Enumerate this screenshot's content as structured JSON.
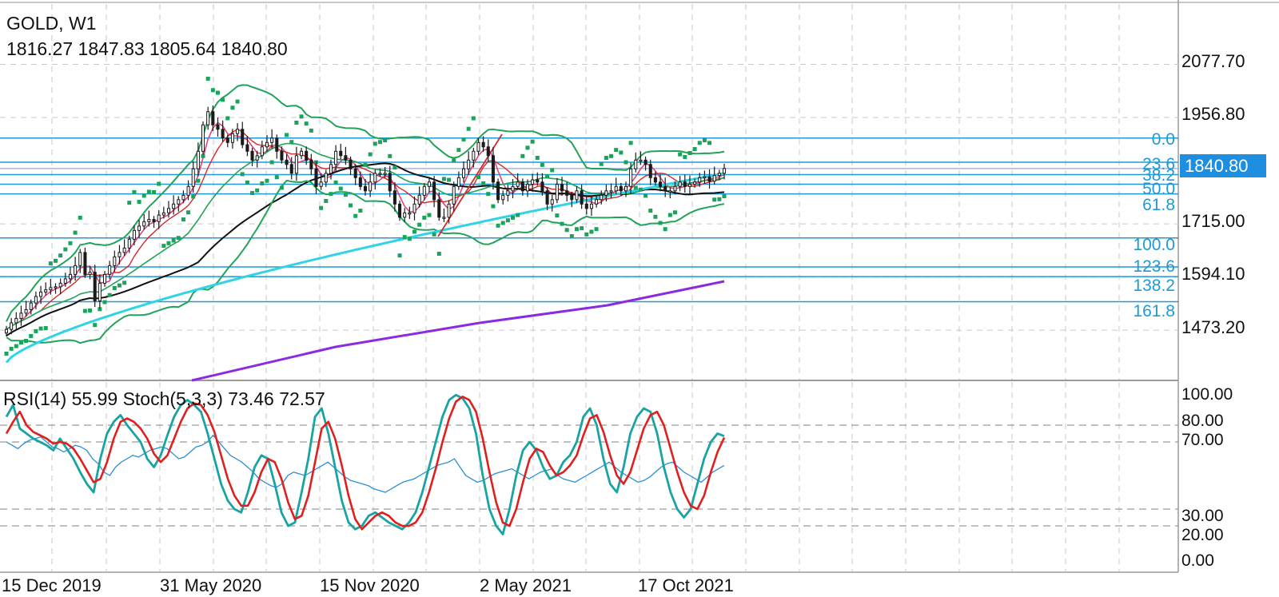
{
  "header": {
    "symbol_timeframe": "GOLD, W1",
    "ohlc": "1816.27 1847.83 1805.64 1840.80"
  },
  "indicator_header": "RSI(14) 55.99 Stoch(5,3,3) 73.46 72.57",
  "current_price": "1840.80",
  "colors": {
    "background": "#ffffff",
    "candle": "#1a1a1a",
    "fib": "#1f9ad6",
    "price_badge": "#1e8fe0",
    "bollinger": "#22a35a",
    "parabolic_sar": "#1aa35a",
    "ma_fast_pink": "#e0457a",
    "ma_red": "#d42a2a",
    "ma_black": "#111111",
    "ma_cyan": "#2fd4e6",
    "ma_purple": "#8a2be2",
    "rsi": "#2a8fd6",
    "stoch_main": "#1aa3a3",
    "stoch_signal": "#e01f1f"
  },
  "chart_data": [
    {
      "type": "candlestick",
      "title": "GOLD, W1",
      "ylim": [
        1410,
        2150
      ],
      "y_ticks": [
        "2077.70",
        "1956.80",
        "1715.00",
        "1594.10",
        "1473.20"
      ],
      "x_ticks": [
        "15 Dec 2019",
        "31 May 2020",
        "15 Nov 2020",
        "2 May 2021",
        "17 Oct 2021"
      ],
      "fibonacci": [
        {
          "level": "0.0",
          "price": 1910
        },
        {
          "level": "23.6",
          "price": 1855
        },
        {
          "level": "38.2",
          "price": 1827
        },
        {
          "level": "50.0",
          "price": 1805
        },
        {
          "level": "61.8",
          "price": 1783
        },
        {
          "level": "100.0",
          "price": 1683
        },
        {
          "level": "123.6",
          "price": 1617
        },
        {
          "level": "138.2",
          "price": 1595
        },
        {
          "level": "161.8",
          "price": 1538
        }
      ],
      "close_series": [
        1475,
        1490,
        1500,
        1512,
        1520,
        1535,
        1550,
        1560,
        1565,
        1570,
        1572,
        1580,
        1590,
        1600,
        1620,
        1650,
        1600,
        1605,
        1540,
        1580,
        1600,
        1620,
        1640,
        1650,
        1660,
        1680,
        1700,
        1710,
        1720,
        1725,
        1720,
        1735,
        1740,
        1750,
        1760,
        1770,
        1780,
        1800,
        1840,
        1880,
        1940,
        1970,
        1940,
        1930,
        1910,
        1900,
        1920,
        1930,
        1895,
        1880,
        1860,
        1870,
        1890,
        1900,
        1910,
        1880,
        1860,
        1850,
        1830,
        1870,
        1880,
        1860,
        1840,
        1800,
        1810,
        1830,
        1850,
        1880,
        1870,
        1860,
        1840,
        1820,
        1800,
        1790,
        1810,
        1830,
        1830,
        1830,
        1790,
        1760,
        1730,
        1740,
        1740,
        1760,
        1780,
        1800,
        1810,
        1770,
        1730,
        1730,
        1760,
        1800,
        1820,
        1840,
        1860,
        1880,
        1900,
        1890,
        1870,
        1810,
        1770,
        1780,
        1790,
        1800,
        1810,
        1790,
        1805,
        1815,
        1810,
        1790,
        1760,
        1770,
        1805,
        1790,
        1780,
        1770,
        1790,
        1760,
        1750,
        1760,
        1770,
        1780,
        1790,
        1790,
        1800,
        1790,
        1800,
        1840,
        1860,
        1860,
        1850,
        1820,
        1810,
        1800,
        1790,
        1790,
        1800,
        1810,
        1800,
        1805,
        1810,
        1820,
        1822,
        1812,
        1825,
        1830,
        1840.8
      ]
    },
    {
      "type": "line",
      "title": "RSI(14) 55.99 Stoch(5,3,3) 73.46 72.57",
      "ylim": [
        0,
        100
      ],
      "y_ticks": [
        "100.00",
        "80.00",
        "70.00",
        "30.00",
        "20.00",
        "0.00"
      ],
      "series": [
        {
          "name": "RSI(14)",
          "values": [
            70,
            68,
            66,
            69,
            71,
            72,
            73,
            70,
            67,
            66,
            64,
            66,
            68,
            67,
            65,
            60,
            57,
            52,
            50,
            55,
            58,
            60,
            62,
            61,
            63,
            65,
            66,
            67,
            66,
            63,
            60,
            61,
            64,
            67,
            68,
            70,
            74,
            70,
            66,
            62,
            60,
            58,
            55,
            52,
            48,
            46,
            44,
            43,
            45,
            50,
            52,
            51,
            50,
            52,
            54,
            56,
            58,
            55,
            52,
            49,
            47,
            46,
            45,
            44,
            42,
            41,
            40,
            42,
            44,
            46,
            47,
            48,
            50,
            52,
            54,
            56,
            57,
            58,
            60,
            55,
            50,
            48,
            46,
            47,
            49,
            51,
            52,
            53,
            54,
            52,
            50,
            48,
            50,
            52,
            53,
            54,
            50,
            48,
            47,
            46,
            48,
            50,
            52,
            54,
            56,
            58,
            55,
            52,
            50,
            48,
            46,
            47,
            49,
            52,
            55,
            57,
            58,
            55,
            52,
            50,
            48,
            46,
            49,
            52,
            54,
            55.99
          ]
        },
        {
          "name": "Stoch main",
          "values": [
            85,
            92,
            78,
            75,
            72,
            70,
            68,
            65,
            72,
            66,
            60,
            52,
            45,
            40,
            60,
            75,
            82,
            86,
            80,
            75,
            70,
            60,
            55,
            62,
            74,
            85,
            92,
            95,
            92,
            88,
            75,
            60,
            45,
            35,
            30,
            28,
            40,
            55,
            62,
            60,
            45,
            28,
            20,
            22,
            40,
            60,
            85,
            90,
            75,
            55,
            35,
            22,
            18,
            20,
            26,
            28,
            25,
            22,
            20,
            18,
            22,
            28,
            40,
            55,
            70,
            85,
            95,
            98,
            96,
            90,
            75,
            50,
            30,
            20,
            15,
            30,
            50,
            65,
            70,
            65,
            55,
            48,
            50,
            58,
            62,
            70,
            85,
            90,
            80,
            60,
            45,
            40,
            55,
            75,
            85,
            90,
            88,
            75,
            55,
            40,
            30,
            25,
            30,
            45,
            60,
            70,
            75,
            73.46
          ]
        },
        {
          "name": "Stoch signal",
          "values": [
            75,
            82,
            88,
            80,
            76,
            74,
            72,
            69,
            70,
            69,
            66,
            60,
            53,
            46,
            48,
            58,
            72,
            82,
            84,
            82,
            78,
            72,
            63,
            58,
            62,
            72,
            82,
            90,
            93,
            92,
            86,
            76,
            62,
            48,
            38,
            32,
            32,
            40,
            52,
            60,
            58,
            48,
            34,
            24,
            26,
            38,
            58,
            78,
            82,
            72,
            56,
            38,
            24,
            18,
            22,
            26,
            28,
            26,
            22,
            20,
            20,
            22,
            28,
            40,
            54,
            70,
            84,
            94,
            97,
            95,
            88,
            72,
            52,
            34,
            22,
            20,
            30,
            46,
            60,
            66,
            64,
            56,
            50,
            52,
            56,
            62,
            74,
            84,
            86,
            76,
            62,
            50,
            45,
            52,
            65,
            78,
            86,
            88,
            80,
            66,
            52,
            40,
            32,
            30,
            38,
            52,
            64,
            72.57
          ]
        }
      ]
    }
  ],
  "x_labels": {
    "dec2019": "15 Dec 2019",
    "may2020": "31 May 2020",
    "nov2020": "15 Nov 2020",
    "may2021": "2 May 2021",
    "oct2021": "17 Oct 2021"
  },
  "price_labels": {
    "p2077": "2077.70",
    "p1956": "1956.80",
    "p1715": "1715.00",
    "p1594": "1594.10",
    "p1473": "1473.20"
  },
  "fib_labels": {
    "f0": "0.0",
    "f236": "23.6",
    "f382": "38.2",
    "f500": "50.0",
    "f618": "61.8",
    "f1000": "100.0",
    "f1236": "123.6",
    "f1382": "138.2",
    "f1618": "161.8"
  },
  "osc_labels": {
    "o100": "100.00",
    "o80": "80.00",
    "o70": "70.00",
    "o30": "30.00",
    "o20": "20.00",
    "o0": "0.00"
  }
}
